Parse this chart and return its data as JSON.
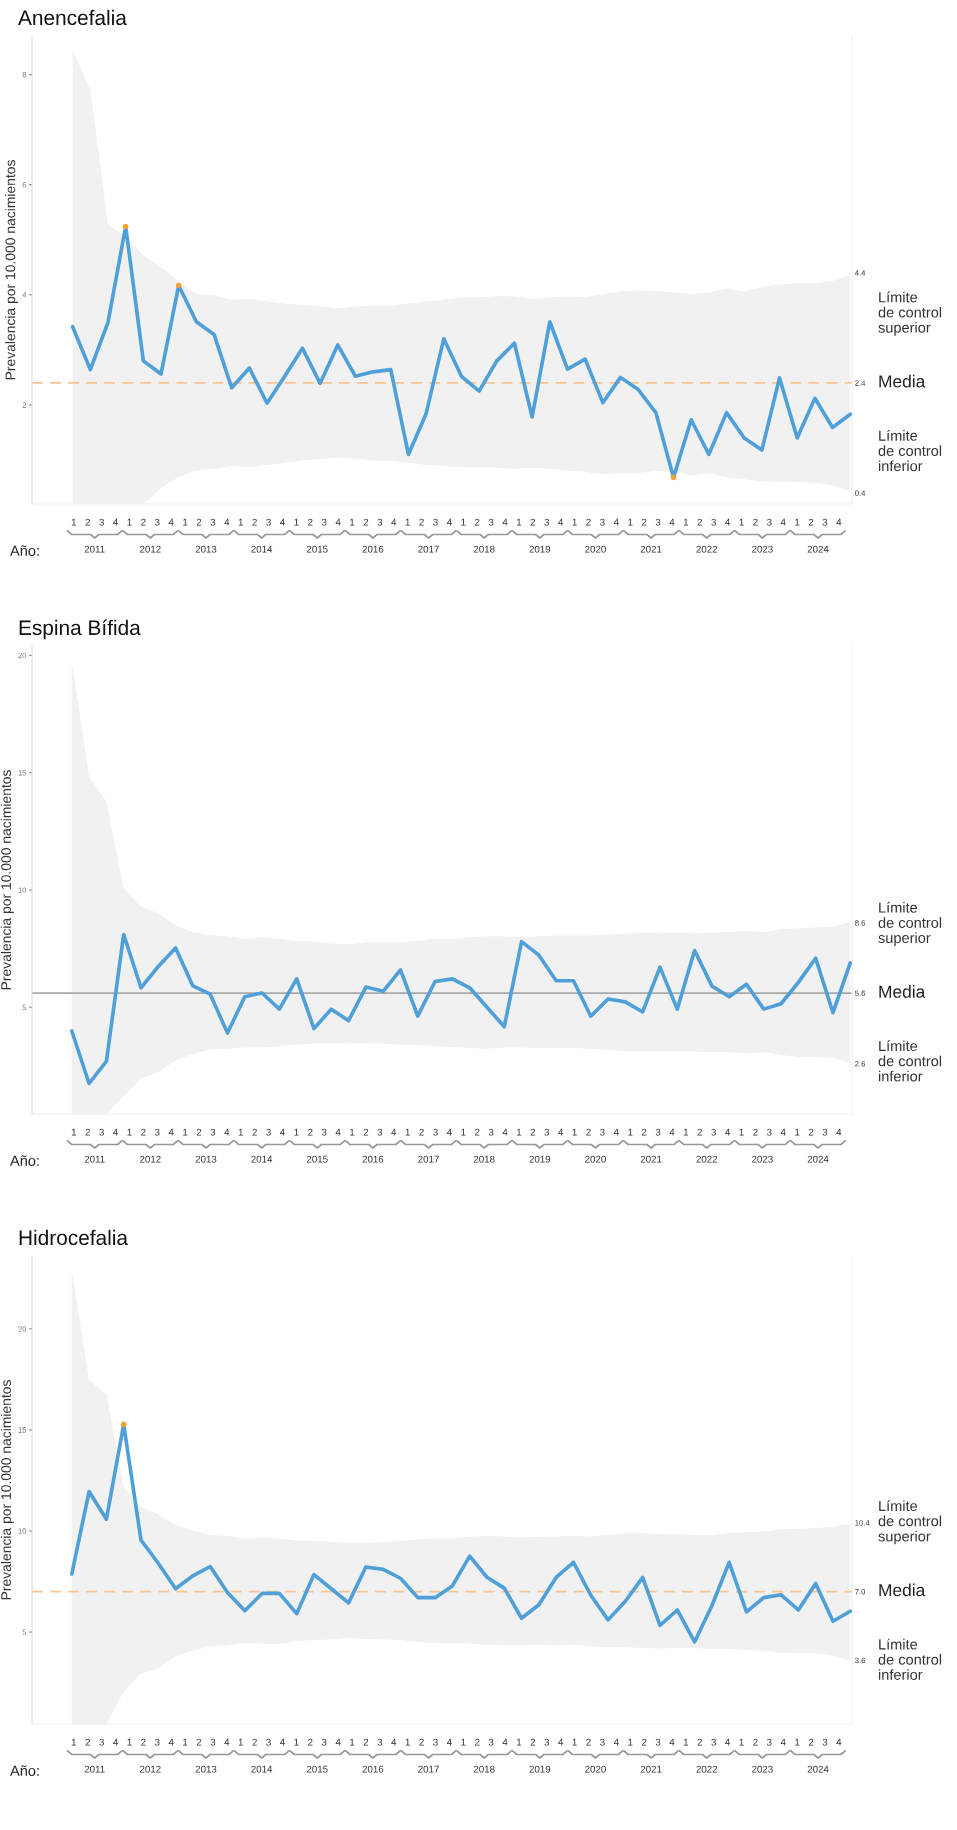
{
  "chart_data": [
    {
      "type": "line",
      "title": "Anencefalia",
      "ylabel": "Prevalencia por 10.000 nacimientos",
      "categories": [
        null,
        null,
        null,
        null,
        null,
        null,
        null,
        null,
        null,
        null,
        null,
        null,
        null,
        null,
        null,
        null,
        null,
        null,
        null,
        null,
        null,
        null,
        null,
        null,
        null,
        null,
        null,
        null,
        null,
        null,
        null,
        null,
        null,
        null,
        null,
        null,
        null,
        null,
        null,
        null,
        null,
        null,
        null,
        null,
        null
      ],
      "ylim": [
        0.2,
        8.7
      ],
      "yticks": [
        2,
        4,
        6,
        8
      ],
      "y2lim": [
        0.2,
        8.7
      ],
      "y2ticks": [
        0.4,
        2.4,
        4.4
      ],
      "series": [
        {
          "color": "#4f9fd8",
          "values": [
            3.42,
            2.64,
            3.5,
            5.24,
            2.8,
            2.56,
            4.17,
            3.51,
            3.28,
            2.31,
            2.67,
            2.03,
            2.52,
            3.03,
            2.39,
            3.09,
            2.52,
            2.6,
            2.64,
            1.1,
            1.84,
            3.2,
            2.52,
            2.25,
            2.8,
            3.12,
            1.78,
            3.51,
            2.65,
            2.83,
            2.04,
            2.5,
            2.28,
            1.86,
            0.68,
            1.73,
            1.1,
            1.86,
            1.4,
            1.18,
            2.49,
            1.4,
            2.12,
            1.59,
            1.83
          ],
          "upper": [
            8.44,
            7.73,
            5.27,
            5.05,
            4.72,
            4.5,
            4.24,
            4.01,
            3.99,
            3.91,
            3.93,
            3.88,
            3.84,
            3.82,
            3.79,
            3.75,
            3.79,
            3.8,
            3.8,
            3.84,
            3.88,
            3.91,
            3.95,
            3.95,
            3.98,
            3.97,
            3.93,
            3.95,
            3.97,
            3.96,
            4.01,
            4.06,
            4.08,
            4.07,
            4.04,
            4.01,
            4.04,
            4.11,
            4.06,
            4.14,
            4.19,
            4.21,
            4.21,
            4.25,
            4.35
          ],
          "lower": [
            0.2,
            0.2,
            0.2,
            0.2,
            0.2,
            0.49,
            0.69,
            0.81,
            0.84,
            0.89,
            0.87,
            0.91,
            0.95,
            0.99,
            1.02,
            1.04,
            1.02,
            0.99,
            0.98,
            0.95,
            0.91,
            0.89,
            0.87,
            0.87,
            0.86,
            0.84,
            0.86,
            0.84,
            0.81,
            0.78,
            0.74,
            0.76,
            0.76,
            0.8,
            0.78,
            0.72,
            0.76,
            0.68,
            0.65,
            0.61,
            0.6,
            0.6,
            0.58,
            0.54,
            0.43
          ]
        },
        {
          "type": "scatter",
          "color": "#f5a031",
          "values": [
            null,
            null,
            null,
            5.24,
            null,
            null,
            4.17,
            null,
            null,
            null,
            null,
            null,
            null,
            null,
            null,
            null,
            null,
            null,
            null,
            null,
            null,
            null,
            null,
            null,
            null,
            null,
            null,
            null,
            null,
            null,
            null,
            null,
            null,
            null,
            0.68,
            null,
            null,
            null,
            null,
            null,
            null,
            null,
            null,
            null,
            null
          ]
        }
      ],
      "ref_lines": [
        {
          "axis": "y",
          "value": 2.4,
          "label": "Media",
          "color": "#f8c48f",
          "line_style": "dashed"
        }
      ],
      "annotations": [
        "Límite\nde control\nsuperior",
        "Límite\nde control\ninferior",
        "Año:",
        "2011",
        "2012",
        "2013",
        "2014",
        "2015",
        "2016",
        "2017",
        "2018",
        "2019",
        "2020",
        "2021",
        "2022",
        "2023",
        "2024",
        "1",
        "2",
        "3",
        "4",
        "1",
        "2",
        "3",
        "4",
        "1",
        "2",
        "3",
        "4",
        "1",
        "2",
        "3",
        "4",
        "1",
        "2",
        "3",
        "4",
        "1",
        "2",
        "3",
        "4",
        "1",
        "2",
        "3",
        "4",
        "1",
        "2",
        "3",
        "4",
        "1",
        "2",
        "3",
        "4",
        "1",
        "2",
        "3",
        "4",
        "1",
        "2",
        "3",
        "4",
        "1",
        "2",
        "3",
        "4",
        "1",
        "2",
        "3",
        "4",
        "1",
        "2",
        "3",
        "4"
      ]
    },
    {
      "type": "line",
      "title": "Espina Bífida",
      "ylabel": "Prevalencia por 10.000 nacimientos",
      "categories": [
        null,
        null,
        null,
        null,
        null,
        null,
        null,
        null,
        null,
        null,
        null,
        null,
        null,
        null,
        null,
        null,
        null,
        null,
        null,
        null,
        null,
        null,
        null,
        null,
        null,
        null,
        null,
        null,
        null,
        null,
        null,
        null,
        null,
        null,
        null,
        null,
        null,
        null,
        null,
        null,
        null,
        null,
        null,
        null,
        null,
        null
      ],
      "ylim": [
        0.45,
        20.4
      ],
      "yticks": [
        5,
        10,
        15,
        20
      ],
      "y2lim": [
        0.45,
        20.4
      ],
      "y2ticks": [
        2.6,
        5.6,
        8.6
      ],
      "series": [
        {
          "color": "#4f9fd8",
          "values": [
            3.99,
            1.75,
            2.69,
            8.1,
            5.83,
            6.74,
            7.53,
            5.91,
            5.56,
            3.9,
            5.45,
            5.61,
            4.92,
            6.21,
            4.09,
            4.92,
            4.43,
            5.86,
            5.68,
            6.59,
            4.62,
            6.1,
            6.21,
            5.83,
            5.0,
            4.17,
            7.8,
            7.22,
            6.13,
            6.13,
            4.62,
            5.35,
            5.23,
            4.8,
            6.71,
            4.92,
            7.42,
            5.91,
            5.45,
            5.98,
            4.92,
            5.15,
            6.06,
            7.09,
            4.77,
            6.89
          ],
          "upper": [
            19.75,
            14.83,
            13.77,
            10.07,
            9.28,
            9.01,
            8.48,
            8.21,
            8.07,
            8.03,
            7.92,
            7.98,
            7.92,
            7.83,
            7.8,
            7.72,
            7.69,
            7.77,
            7.77,
            7.77,
            7.83,
            7.92,
            7.92,
            7.98,
            8.03,
            8.03,
            7.98,
            8.03,
            8.06,
            8.06,
            8.06,
            8.1,
            8.13,
            8.18,
            8.15,
            8.18,
            8.15,
            8.18,
            8.21,
            8.25,
            8.21,
            8.33,
            8.37,
            8.4,
            8.43,
            8.63
          ],
          "lower": [
            0.45,
            0.45,
            0.45,
            1.22,
            1.97,
            2.23,
            2.73,
            3.0,
            3.21,
            3.23,
            3.29,
            3.29,
            3.34,
            3.41,
            3.46,
            3.46,
            3.49,
            3.46,
            3.44,
            3.41,
            3.38,
            3.34,
            3.31,
            3.26,
            3.23,
            3.29,
            3.29,
            3.26,
            3.26,
            3.26,
            3.23,
            3.18,
            3.14,
            3.14,
            3.11,
            3.11,
            3.11,
            3.08,
            3.08,
            3.03,
            3.08,
            2.96,
            2.88,
            2.88,
            2.84,
            2.62
          ]
        }
      ],
      "ref_lines": [
        {
          "axis": "y",
          "value": 5.6,
          "label": "Media",
          "color": "#a9a9a9",
          "line_style": "solid"
        }
      ],
      "annotations": [
        "Límite\nde control\nsuperior",
        "Límite\nde control\ninferior",
        "Año:",
        "2011",
        "2012",
        "2013",
        "2014",
        "2015",
        "2016",
        "2017",
        "2018",
        "2019",
        "2020",
        "2021",
        "2022",
        "2023",
        "2024",
        "1",
        "2",
        "3",
        "4",
        "1",
        "2",
        "3",
        "4",
        "1",
        "2",
        "3",
        "4",
        "1",
        "2",
        "3",
        "4",
        "1",
        "2",
        "3",
        "4",
        "1",
        "2",
        "3",
        "4",
        "1",
        "2",
        "3",
        "4",
        "1",
        "2",
        "3",
        "4",
        "1",
        "2",
        "3",
        "4",
        "1",
        "2",
        "3",
        "4",
        "1",
        "2",
        "3",
        "4",
        "1",
        "2",
        "3",
        "4",
        "1",
        "2",
        "3",
        "4",
        "1",
        "2",
        "3",
        "4"
      ]
    },
    {
      "type": "line",
      "title": "Hidrocefalia",
      "ylabel": "Prevalencia por 10.000 nacimientos",
      "categories": [
        null,
        null,
        null,
        null,
        null,
        null,
        null,
        null,
        null,
        null,
        null,
        null,
        null,
        null,
        null,
        null,
        null,
        null,
        null,
        null,
        null,
        null,
        null,
        null,
        null,
        null,
        null,
        null,
        null,
        null,
        null,
        null,
        null,
        null,
        null,
        null,
        null,
        null,
        null,
        null,
        null,
        null,
        null,
        null,
        null,
        null
      ],
      "ylim": [
        0.45,
        23.6
      ],
      "yticks": [
        5,
        10,
        15,
        20
      ],
      "y2lim": [
        0.45,
        23.6
      ],
      "y2ticks": [
        3.6,
        {
          "value": 7.0,
          "label": "7.0"
        },
        10.4
      ],
      "series": [
        {
          "color": "#4f9fd8",
          "values": [
            7.87,
            11.95,
            10.58,
            15.27,
            9.55,
            8.4,
            7.14,
            7.78,
            8.24,
            6.96,
            6.05,
            6.91,
            6.91,
            5.91,
            7.84,
            7.14,
            6.44,
            8.22,
            8.1,
            7.66,
            6.7,
            6.7,
            7.28,
            8.75,
            7.71,
            7.17,
            5.68,
            6.35,
            7.7,
            8.45,
            6.82,
            5.6,
            6.52,
            7.7,
            5.33,
            6.09,
            4.51,
            6.3,
            8.45,
            6.0,
            6.7,
            6.84,
            6.09,
            7.4,
            5.53,
            6.03
          ],
          "upper": [
            22.89,
            17.46,
            16.76,
            12.12,
            11.2,
            10.81,
            10.29,
            10.02,
            9.8,
            9.76,
            9.62,
            9.67,
            9.62,
            9.53,
            9.5,
            9.46,
            9.41,
            9.41,
            9.45,
            9.5,
            9.59,
            9.64,
            9.64,
            9.71,
            9.76,
            9.73,
            9.67,
            9.71,
            9.73,
            9.76,
            9.73,
            9.8,
            9.88,
            9.88,
            9.85,
            9.85,
            9.8,
            9.8,
            9.9,
            9.94,
            9.97,
            10.08,
            10.11,
            10.15,
            10.2,
            10.37
          ],
          "lower": [
            0.45,
            0.45,
            0.45,
            2.06,
            2.93,
            3.2,
            3.81,
            4.07,
            4.3,
            4.33,
            4.46,
            4.42,
            4.42,
            4.55,
            4.6,
            4.63,
            4.72,
            4.65,
            4.63,
            4.6,
            4.51,
            4.46,
            4.46,
            4.42,
            4.37,
            4.33,
            4.33,
            4.37,
            4.33,
            4.37,
            4.3,
            4.25,
            4.25,
            4.21,
            4.19,
            4.21,
            4.21,
            4.16,
            4.16,
            4.11,
            4.07,
            3.98,
            3.95,
            3.95,
            3.84,
            3.6
          ]
        },
        {
          "type": "scatter",
          "color": "#f5a031",
          "values": [
            null,
            null,
            null,
            15.27,
            null,
            null,
            null,
            null,
            null,
            null,
            null,
            null,
            null,
            null,
            null,
            null,
            null,
            null,
            null,
            null,
            null,
            null,
            null,
            null,
            null,
            null,
            null,
            null,
            null,
            null,
            null,
            null,
            null,
            null,
            null,
            null,
            null,
            null,
            null,
            null,
            null,
            null,
            null,
            null,
            null,
            null
          ]
        }
      ],
      "ref_lines": [
        {
          "axis": "y",
          "value": 7.0,
          "label": "Media",
          "color": "#f8c48f",
          "line_style": "dashed"
        }
      ],
      "annotations": [
        "Límite\nde control\nsuperior",
        "Límite\nde control\ninferior",
        "Año:",
        "2011",
        "2012",
        "2013",
        "2014",
        "2015",
        "2016",
        "2017",
        "2018",
        "2019",
        "2020",
        "2021",
        "2022",
        "2023",
        "2024",
        "1",
        "2",
        "3",
        "4",
        "1",
        "2",
        "3",
        "4",
        "1",
        "2",
        "3",
        "4",
        "1",
        "2",
        "3",
        "4",
        "1",
        "2",
        "3",
        "4",
        "1",
        "2",
        "3",
        "4",
        "1",
        "2",
        "3",
        "4",
        "1",
        "2",
        "3",
        "4",
        "1",
        "2",
        "3",
        "4",
        "1",
        "2",
        "3",
        "4",
        "1",
        "2",
        "3",
        "4",
        "1",
        "2",
        "3",
        "4",
        "1",
        "2",
        "3",
        "4",
        "1",
        "2",
        "3",
        "4"
      ]
    }
  ]
}
